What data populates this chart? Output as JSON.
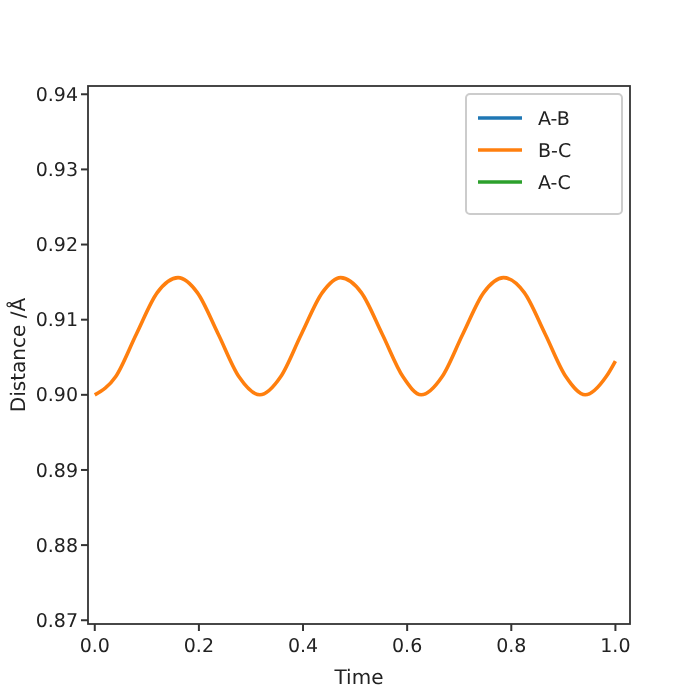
{
  "chart_data": {
    "type": "line",
    "xlabel": "Time",
    "ylabel": "Distance /Å",
    "x": [
      0,
      0.04,
      0.08,
      0.12,
      0.16,
      0.197,
      0.237,
      0.277,
      0.317,
      0.357,
      0.397,
      0.437,
      0.472,
      0.512,
      0.552,
      0.592,
      0.627,
      0.667,
      0.707,
      0.747,
      0.785,
      0.825,
      0.865,
      0.905,
      0.942,
      0.982,
      1.0
    ],
    "series": [
      {
        "name": "A-B",
        "color": "#1f77b4",
        "values": [
          null,
          null,
          null,
          null,
          null,
          null,
          null,
          null,
          null,
          null,
          null,
          null,
          null,
          null,
          null,
          null,
          null,
          null,
          null,
          null,
          null,
          null,
          null,
          null,
          null,
          null,
          null
        ]
      },
      {
        "name": "B-C",
        "color": "#ff7f0e",
        "values": [
          0.9,
          0.9024,
          0.9081,
          0.9136,
          0.9156,
          0.9136,
          0.9081,
          0.9024,
          0.9,
          0.9024,
          0.9081,
          0.9136,
          0.9156,
          0.9136,
          0.9081,
          0.9024,
          0.9,
          0.9024,
          0.9081,
          0.9136,
          0.9156,
          0.9136,
          0.9081,
          0.9024,
          0.9,
          0.9024,
          0.9045
        ]
      },
      {
        "name": "A-C",
        "color": "#2ca02c",
        "values": [
          null,
          null,
          null,
          null,
          null,
          null,
          null,
          null,
          null,
          null,
          null,
          null,
          null,
          null,
          null,
          null,
          null,
          null,
          null,
          null,
          null,
          null,
          null,
          null,
          null,
          null,
          null
        ]
      }
    ],
    "xlim": [
      -0.013,
      1.028
    ],
    "ylim": [
      0.8695,
      0.9411
    ],
    "xticks": [
      {
        "value": 0,
        "label": "0.0"
      },
      {
        "value": 0.2,
        "label": "0.2"
      },
      {
        "value": 0.4,
        "label": "0.4"
      },
      {
        "value": 0.6,
        "label": "0.6"
      },
      {
        "value": 0.8,
        "label": "0.8"
      },
      {
        "value": 1,
        "label": "1.0"
      }
    ],
    "yticks": [
      0.87,
      0.88,
      0.89,
      {
        "value": 0.9,
        "label": "0.90"
      },
      0.91,
      0.92,
      0.93,
      0.94
    ],
    "legend": "top right",
    "grid": false
  }
}
